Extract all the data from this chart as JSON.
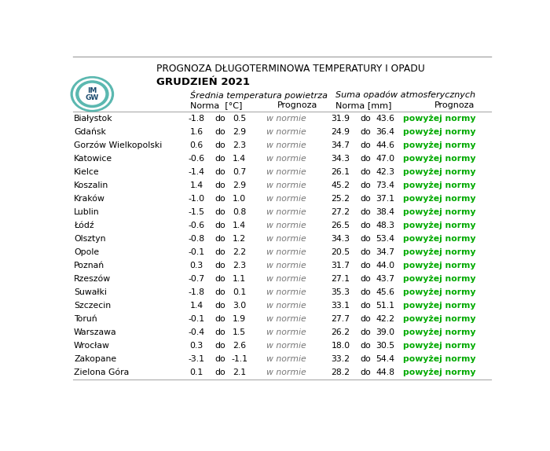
{
  "title_line1": "PROGNOZA DŁUGOTERMINOWA TEMPERATURY I OPADU",
  "title_line2": "GRUDZIEŃ 2021",
  "header_temp": "Średnia temperatura powietrza",
  "header_precip": "Suma opadów atmosferycznych",
  "cities": [
    "Białystok",
    "Gdańsk",
    "Gorzów Wielkopolski",
    "Katowice",
    "Kielce",
    "Koszalin",
    "Kraków",
    "Lublin",
    "Łódź",
    "Olsztyn",
    "Opole",
    "Poznań",
    "Rzeszów",
    "Suwałki",
    "Szczecin",
    "Toruń",
    "Warszawa",
    "Wrocław",
    "Zakopane",
    "Zielona Góra"
  ],
  "temp_norm_low": [
    -1.8,
    1.6,
    0.6,
    -0.6,
    -1.4,
    1.4,
    -1.0,
    -1.5,
    -0.6,
    -0.8,
    -0.1,
    0.3,
    -0.7,
    -1.8,
    1.4,
    -0.1,
    -0.4,
    0.3,
    -3.1,
    0.1
  ],
  "temp_norm_high": [
    0.5,
    2.9,
    2.3,
    1.4,
    0.7,
    2.9,
    1.0,
    0.8,
    1.4,
    1.2,
    2.2,
    2.3,
    1.1,
    0.1,
    3.0,
    1.9,
    1.5,
    2.6,
    -1.1,
    2.1
  ],
  "temp_prognoza": [
    "w normie",
    "w normie",
    "w normie",
    "w normie",
    "w normie",
    "w normie",
    "w normie",
    "w normie",
    "w normie",
    "w normie",
    "w normie",
    "w normie",
    "w normie",
    "w normie",
    "w normie",
    "w normie",
    "w normie",
    "w normie",
    "w normie",
    "w normie"
  ],
  "precip_norm_low": [
    31.9,
    24.9,
    34.7,
    34.3,
    26.1,
    45.2,
    25.2,
    27.2,
    26.5,
    34.3,
    20.5,
    31.7,
    27.1,
    35.3,
    33.1,
    27.7,
    26.2,
    18.0,
    33.2,
    28.2
  ],
  "precip_norm_high": [
    43.6,
    36.4,
    44.6,
    47.0,
    42.3,
    73.4,
    37.1,
    38.4,
    48.3,
    53.4,
    34.7,
    44.0,
    43.7,
    45.6,
    51.1,
    42.2,
    39.0,
    30.5,
    54.4,
    44.8
  ],
  "precip_prognoza": [
    "powyżej normy",
    "powyżej normy",
    "powyżej normy",
    "powyżej normy",
    "powyżej normy",
    "powyżej normy",
    "powyżej normy",
    "powyżej normy",
    "powyżej normy",
    "powyżej normy",
    "powyżej normy",
    "powyżej normy",
    "powyżej normy",
    "powyżej normy",
    "powyżej normy",
    "powyżej normy",
    "powyżej normy",
    "powyżej normy",
    "powyżej normy",
    "powyżej normy"
  ],
  "bg_color": "#ffffff",
  "text_color": "#000000",
  "green_color": "#00aa00",
  "line_color": "#aaaaaa",
  "logo_teal": "#5bb8b0",
  "logo_text_color": "#2a6496"
}
